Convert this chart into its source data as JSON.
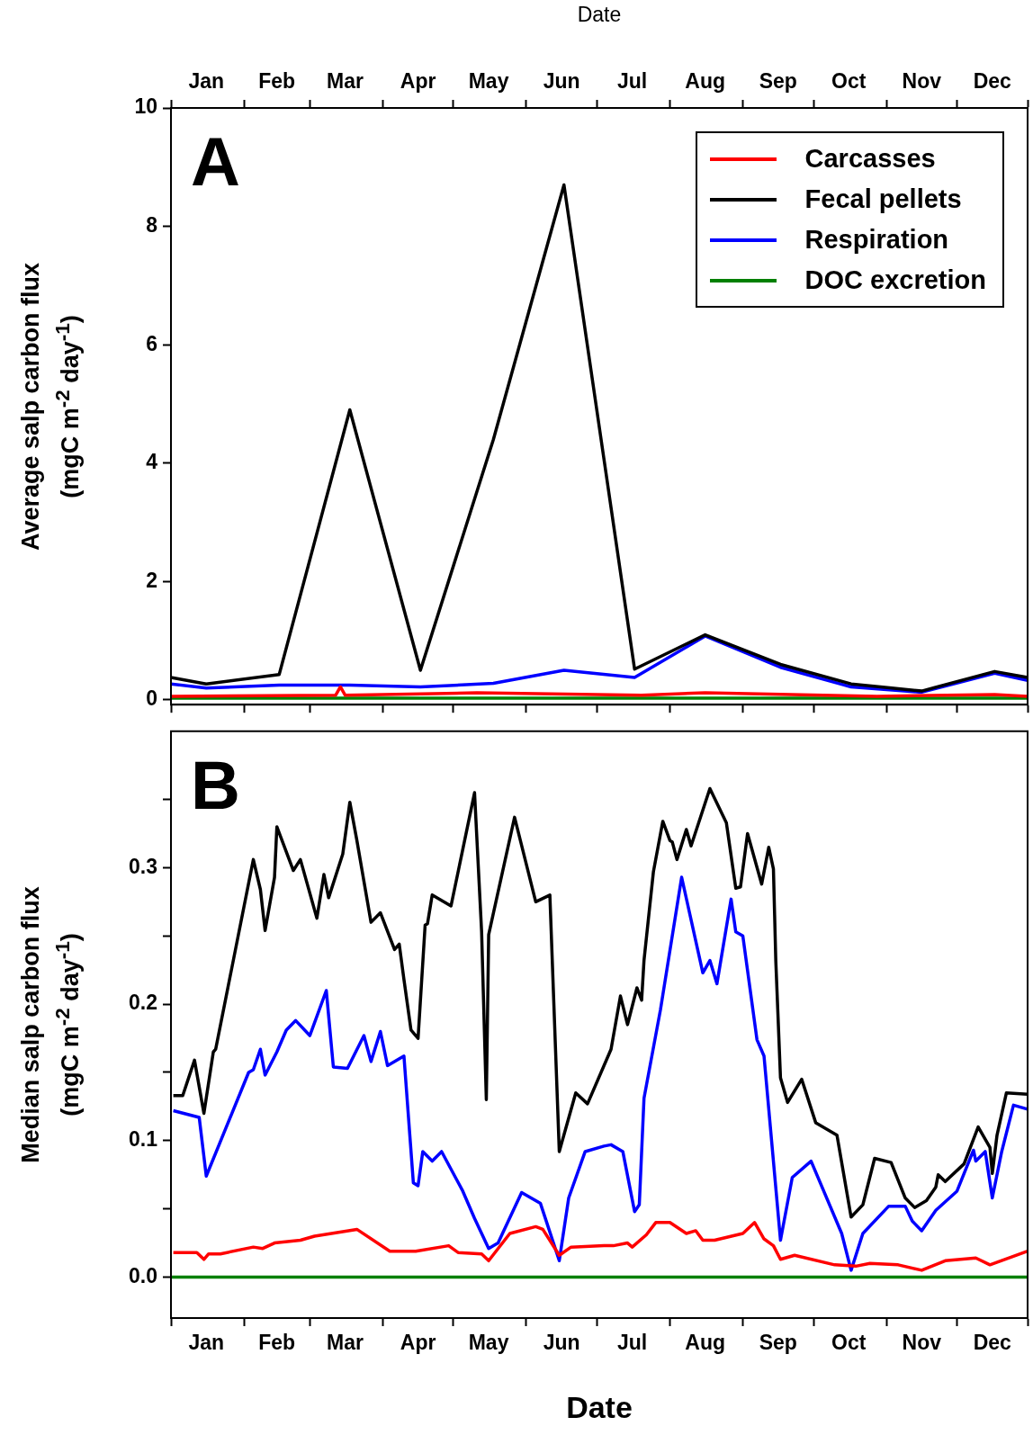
{
  "chart_data": [
    {
      "type": "line",
      "xlabel": "Date",
      "ylabel": "Average salp carbon flux\n(mgC m$^{-2}$ day$^{-1}$)",
      "annotations": [
        "A"
      ],
      "legend": "top right",
      "xlim": [
        "--01-01",
        "--12-31"
      ],
      "xticks": [
        {
          "value": "--01-01",
          "label": null
        },
        {
          "value": "--01-16",
          "label": "Jan"
        },
        {
          "value": "--02-01",
          "label": null
        },
        {
          "value": "--02-15",
          "label": "Feb"
        },
        {
          "value": "--03-01",
          "label": null
        },
        {
          "value": "--03-16",
          "label": "Mar"
        },
        {
          "value": "--04-01",
          "label": null
        },
        {
          "value": "--04-16",
          "label": "Apr"
        },
        {
          "value": "--05-01",
          "label": null
        },
        {
          "value": "--05-16",
          "label": "May"
        },
        {
          "value": "--06-01",
          "label": null
        },
        {
          "value": "--06-16",
          "label": "Jun"
        },
        {
          "value": "--07-01",
          "label": null
        },
        {
          "value": "--07-16",
          "label": "Jul"
        },
        {
          "value": "--08-01",
          "label": null
        },
        {
          "value": "--08-16",
          "label": "Aug"
        },
        {
          "value": "--09-01",
          "label": null
        },
        {
          "value": "--09-16",
          "label": "Sep"
        },
        {
          "value": "--10-01",
          "label": null
        },
        {
          "value": "--10-16",
          "label": "Oct"
        },
        {
          "value": "--11-01",
          "label": null
        },
        {
          "value": "--11-16",
          "label": "Nov"
        },
        {
          "value": "--12-01",
          "label": null
        },
        {
          "value": "--12-16",
          "label": "Dec"
        },
        {
          "value": "--12-31",
          "label": null
        }
      ],
      "ylim": [
        -0.08,
        10
      ],
      "yticks": [
        0,
        2,
        4,
        6,
        8,
        10
      ],
      "series": [
        {
          "name": "Carcasses",
          "color": "#ff0000",
          "x": [
            "--01-01",
            "--03-12",
            "--03-14",
            "--03-16",
            "--05-11",
            "--07-20",
            "--08-16",
            "--10-28",
            "--12-17",
            "--12-31"
          ],
          "values": [
            0.06,
            0.08,
            0.22,
            0.08,
            0.12,
            0.08,
            0.12,
            0.06,
            0.09,
            0.06
          ]
        },
        {
          "name": "Fecal pellets",
          "color": "#000000",
          "x": [
            "--01-01",
            "--01-16",
            "--02-16",
            "--03-18",
            "--04-17",
            "--05-18",
            "--06-17",
            "--07-17",
            "--08-16",
            "--09-17",
            "--10-17",
            "--11-16",
            "--12-17",
            "--12-31"
          ],
          "values": [
            0.38,
            0.27,
            0.43,
            4.9,
            0.5,
            4.4,
            8.7,
            0.52,
            1.1,
            0.6,
            0.27,
            0.15,
            0.48,
            0.38
          ]
        },
        {
          "name": "Respiration",
          "color": "#0000ff",
          "x": [
            "--01-01",
            "--01-16",
            "--02-16",
            "--03-18",
            "--04-17",
            "--05-18",
            "--06-17",
            "--07-17",
            "--08-16",
            "--09-17",
            "--10-17",
            "--11-16",
            "--12-17",
            "--12-31"
          ],
          "values": [
            0.27,
            0.2,
            0.25,
            0.25,
            0.22,
            0.28,
            0.5,
            0.38,
            1.08,
            0.55,
            0.22,
            0.13,
            0.45,
            0.33
          ]
        },
        {
          "name": "DOC excretion",
          "color": "#008000",
          "x": [
            "--01-01",
            "--12-31"
          ],
          "values": [
            0.03,
            0.03
          ]
        }
      ]
    },
    {
      "type": "line",
      "xlabel": "Date",
      "ylabel": "Median salp carbon flux\n(mgC m$^{-2}$ day$^{-1}$)",
      "annotations": [
        "B"
      ],
      "xlim": [
        "--01-01",
        "--12-31"
      ],
      "xticks": [
        {
          "value": "--01-01",
          "label": null
        },
        {
          "value": "--01-16",
          "label": "Jan"
        },
        {
          "value": "--02-01",
          "label": null
        },
        {
          "value": "--02-15",
          "label": "Feb"
        },
        {
          "value": "--03-01",
          "label": null
        },
        {
          "value": "--03-16",
          "label": "Mar"
        },
        {
          "value": "--04-01",
          "label": null
        },
        {
          "value": "--04-16",
          "label": "Apr"
        },
        {
          "value": "--05-01",
          "label": null
        },
        {
          "value": "--05-16",
          "label": "May"
        },
        {
          "value": "--06-01",
          "label": null
        },
        {
          "value": "--06-16",
          "label": "Jun"
        },
        {
          "value": "--07-01",
          "label": null
        },
        {
          "value": "--07-16",
          "label": "Jul"
        },
        {
          "value": "--08-01",
          "label": null
        },
        {
          "value": "--08-16",
          "label": "Aug"
        },
        {
          "value": "--09-01",
          "label": null
        },
        {
          "value": "--09-16",
          "label": "Sep"
        },
        {
          "value": "--10-01",
          "label": null
        },
        {
          "value": "--10-16",
          "label": "Oct"
        },
        {
          "value": "--11-01",
          "label": null
        },
        {
          "value": "--11-16",
          "label": "Nov"
        },
        {
          "value": "--12-01",
          "label": null
        },
        {
          "value": "--12-16",
          "label": "Dec"
        },
        {
          "value": "--12-31",
          "label": null
        }
      ],
      "ylim": [
        -0.03,
        0.4
      ],
      "yticks": [
        {
          "value": 0,
          "label": "0.0"
        },
        {
          "value": 0.05,
          "label": null
        },
        0.1,
        {
          "value": 0.15,
          "label": null
        },
        0.2,
        {
          "value": 0.25,
          "label": null
        },
        0.3,
        {
          "value": 0.35,
          "label": null
        }
      ],
      "series": [
        {
          "color": "#ff0000",
          "x": [
            "--01-02",
            "--01-12",
            "--01-15",
            "--01-17",
            "--01-22",
            "--02-05",
            "--02-09",
            "--02-14",
            "--02-25",
            "--03-03",
            "--03-21",
            "--04-04",
            "--04-15",
            "--04-29",
            "--05-03",
            "--05-13",
            "--05-16",
            "--05-25",
            "--06-05",
            "--06-08",
            "--06-15",
            "--06-20",
            "--07-04",
            "--07-08",
            "--07-14",
            "--07-16",
            "--07-22",
            "--07-26",
            "--08-01",
            "--08-08",
            "--08-12",
            "--08-15",
            "--08-20",
            "--09-01",
            "--09-06",
            "--09-10",
            "--09-14",
            "--09-17",
            "--09-23",
            "--10-10",
            "--10-19",
            "--10-25",
            "--11-06",
            "--11-16",
            "--11-26",
            "--12-09",
            "--12-15",
            "--12-31"
          ],
          "values": [
            0.018,
            0.018,
            0.013,
            0.017,
            0.017,
            0.022,
            0.021,
            0.025,
            0.027,
            0.03,
            0.035,
            0.019,
            0.019,
            0.023,
            0.018,
            0.017,
            0.012,
            0.032,
            0.037,
            0.035,
            0.016,
            0.022,
            0.023,
            0.023,
            0.025,
            0.022,
            0.031,
            0.04,
            0.04,
            0.032,
            0.034,
            0.027,
            0.027,
            0.032,
            0.04,
            0.028,
            0.023,
            0.013,
            0.016,
            0.009,
            0.008,
            0.01,
            0.009,
            0.005,
            0.012,
            0.014,
            0.009,
            0.019
          ]
        },
        {
          "color": "#000000",
          "x": [
            "--01-02",
            "--01-06",
            "--01-11",
            "--01-15",
            "--01-19",
            "--01-20",
            "--02-05",
            "--02-08",
            "--02-10",
            "--02-14",
            "--02-15",
            "--02-22",
            "--02-25",
            "--03-04",
            "--03-07",
            "--03-09",
            "--03-15",
            "--03-18",
            "--03-21",
            "--03-27",
            "--03-31",
            "--04-06",
            "--04-08",
            "--04-10",
            "--04-13",
            "--04-16",
            "--04-19",
            "--04-20",
            "--04-22",
            "--04-30",
            "--05-10",
            "--05-13",
            "--05-15",
            "--05-16",
            "--05-27",
            "--06-05",
            "--06-11",
            "--06-15",
            "--06-22",
            "--06-27",
            "--07-07",
            "--07-11",
            "--07-14",
            "--07-18",
            "--07-20",
            "--07-21",
            "--07-25",
            "--07-29",
            "--08-01",
            "--08-02",
            "--08-04",
            "--08-08",
            "--08-10",
            "--08-18",
            "--08-25",
            "--08-29",
            "--08-31",
            "--09-03",
            "--09-09",
            "--09-12",
            "--09-14",
            "--09-15",
            "--09-17",
            "--09-20",
            "--09-26",
            "--10-02",
            "--10-11",
            "--10-17",
            "--10-22",
            "--10-27",
            "--11-03",
            "--11-09",
            "--11-13",
            "--11-18",
            "--11-22",
            "--11-23",
            "--11-26",
            "--12-04",
            "--12-10",
            "--12-15",
            "--12-16",
            "--12-18",
            "--12-22",
            "--12-31"
          ],
          "values": [
            0.133,
            0.133,
            0.159,
            0.12,
            0.165,
            0.167,
            0.306,
            0.284,
            0.254,
            0.293,
            0.33,
            0.298,
            0.306,
            0.263,
            0.295,
            0.278,
            0.31,
            0.348,
            0.32,
            0.26,
            0.267,
            0.24,
            0.244,
            0.218,
            0.181,
            0.175,
            0.258,
            0.259,
            0.28,
            0.272,
            0.355,
            0.253,
            0.13,
            0.251,
            0.337,
            0.275,
            0.28,
            0.092,
            0.135,
            0.127,
            0.167,
            0.206,
            0.185,
            0.212,
            0.203,
            0.232,
            0.297,
            0.334,
            0.32,
            0.319,
            0.306,
            0.328,
            0.316,
            0.358,
            0.333,
            0.285,
            0.286,
            0.325,
            0.288,
            0.315,
            0.299,
            0.232,
            0.146,
            0.128,
            0.145,
            0.113,
            0.104,
            0.044,
            0.053,
            0.087,
            0.084,
            0.058,
            0.051,
            0.056,
            0.066,
            0.075,
            0.07,
            0.083,
            0.11,
            0.095,
            0.076,
            0.104,
            0.135,
            0.134
          ]
        },
        {
          "color": "#0000ff",
          "x": [
            "--01-02",
            "--01-13",
            "--01-16",
            "--02-03",
            "--02-05",
            "--02-08",
            "--02-10",
            "--02-15",
            "--02-19",
            "--02-23",
            "--03-01",
            "--03-08",
            "--03-11",
            "--03-17",
            "--03-24",
            "--03-27",
            "--03-31",
            "--04-03",
            "--04-10",
            "--04-14",
            "--04-16",
            "--04-18",
            "--04-22",
            "--04-26",
            "--05-05",
            "--05-10",
            "--05-16",
            "--05-20",
            "--05-30",
            "--06-07",
            "--06-15",
            "--06-19",
            "--06-26",
            "--07-04",
            "--07-07",
            "--07-12",
            "--07-17",
            "--07-19",
            "--07-21",
            "--07-28",
            "--08-06",
            "--08-15",
            "--08-18",
            "--08-21",
            "--08-27",
            "--08-29",
            "--09-01",
            "--09-07",
            "--09-10",
            "--09-17",
            "--09-22",
            "--09-30",
            "--10-13",
            "--10-17",
            "--10-22",
            "--11-02",
            "--11-09",
            "--11-12",
            "--11-16",
            "--11-22",
            "--12-01",
            "--12-08",
            "--12-09",
            "--12-13",
            "--12-16",
            "--12-20",
            "--12-25",
            "--12-31"
          ],
          "values": [
            0.122,
            0.117,
            0.074,
            0.15,
            0.152,
            0.167,
            0.148,
            0.165,
            0.181,
            0.188,
            0.177,
            0.21,
            0.154,
            0.153,
            0.177,
            0.158,
            0.18,
            0.155,
            0.162,
            0.069,
            0.067,
            0.092,
            0.085,
            0.092,
            0.063,
            0.043,
            0.021,
            0.025,
            0.062,
            0.054,
            0.012,
            0.058,
            0.092,
            0.096,
            0.097,
            0.092,
            0.048,
            0.053,
            0.131,
            0.196,
            0.293,
            0.223,
            0.232,
            0.215,
            0.277,
            0.253,
            0.25,
            0.174,
            0.162,
            0.027,
            0.073,
            0.085,
            0.032,
            0.005,
            0.032,
            0.052,
            0.052,
            0.041,
            0.034,
            0.049,
            0.063,
            0.093,
            0.085,
            0.092,
            0.058,
            0.092,
            0.126,
            0.123
          ]
        },
        {
          "color": "#008000",
          "x": [
            "--01-01",
            "--12-31"
          ],
          "values": [
            0,
            0
          ]
        }
      ]
    }
  ]
}
